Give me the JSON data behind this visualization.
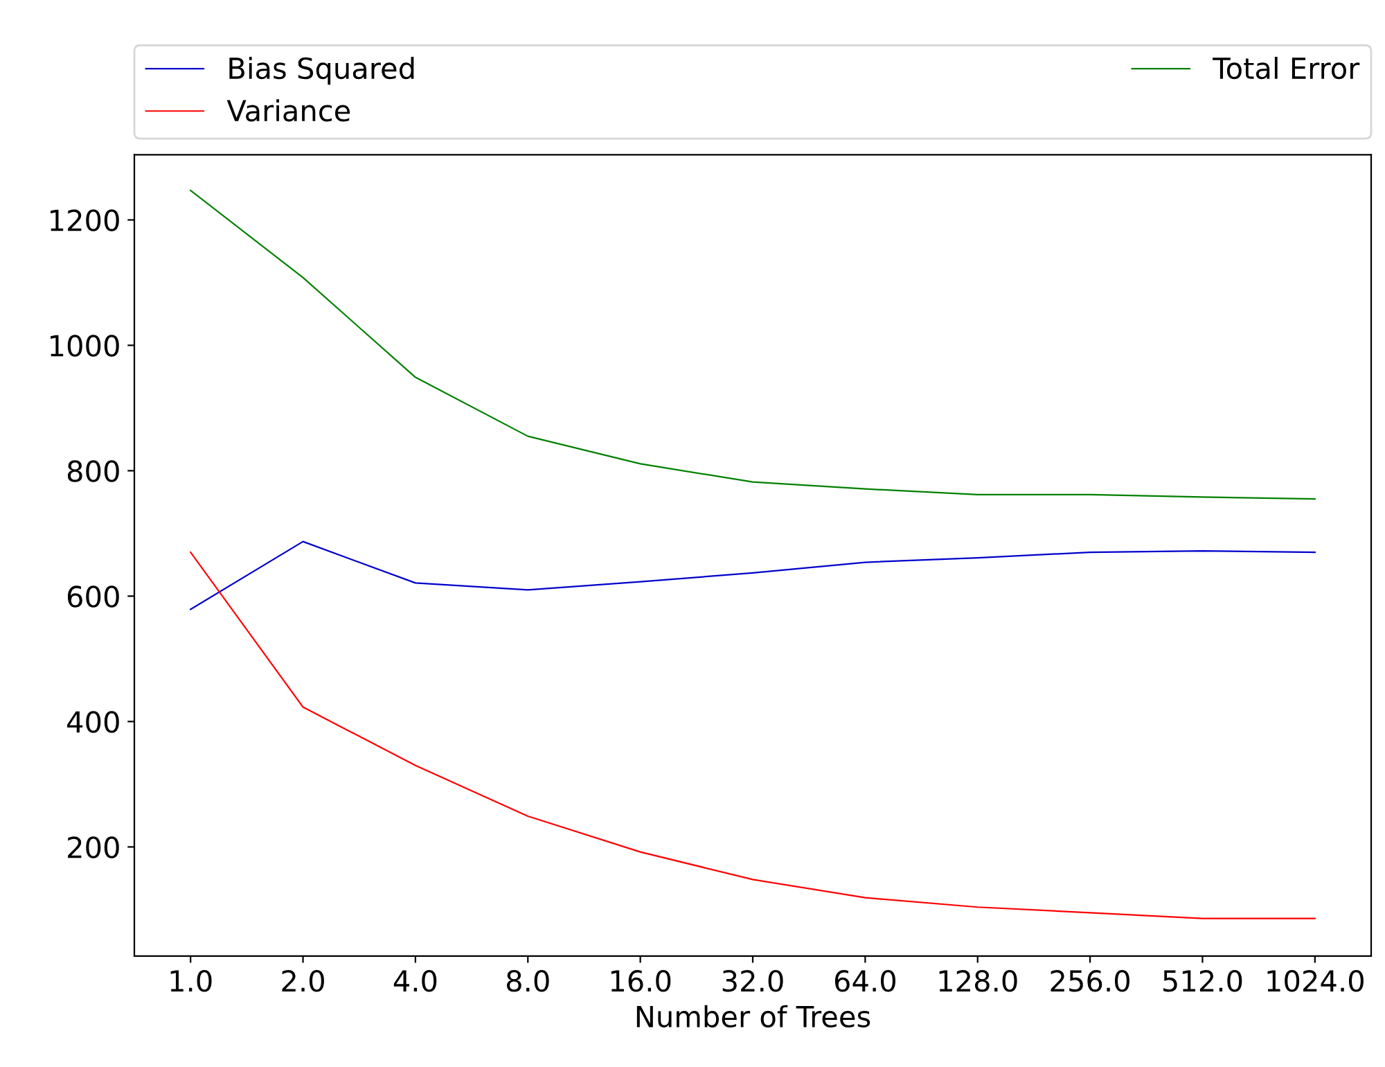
{
  "chart_data": {
    "type": "line",
    "xlabel": "Number of Trees",
    "categories": [
      "1.0",
      "2.0",
      "4.0",
      "8.0",
      "16.0",
      "32.0",
      "64.0",
      "128.0",
      "256.0",
      "512.0",
      "1024.0"
    ],
    "series": [
      {
        "name": "Bias Squared",
        "color": "#0000cc",
        "values": [
          579,
          687,
          621,
          610,
          623,
          637,
          654,
          661,
          670,
          672,
          670
        ]
      },
      {
        "name": "Variance",
        "color": "#ff0000",
        "values": [
          670,
          423,
          330,
          249,
          192,
          148,
          119,
          104,
          95,
          86,
          86
        ]
      },
      {
        "name": "Total Error",
        "color": "#008000",
        "values": [
          1247,
          1108,
          949,
          855,
          811,
          782,
          771,
          762,
          762,
          758,
          755
        ]
      }
    ],
    "ylim": [
      26,
      1304
    ],
    "yticks": [
      200,
      400,
      600,
      800,
      1000,
      1200
    ],
    "grid": false,
    "legend": "top",
    "marker": "none",
    "line_style": "solid"
  }
}
